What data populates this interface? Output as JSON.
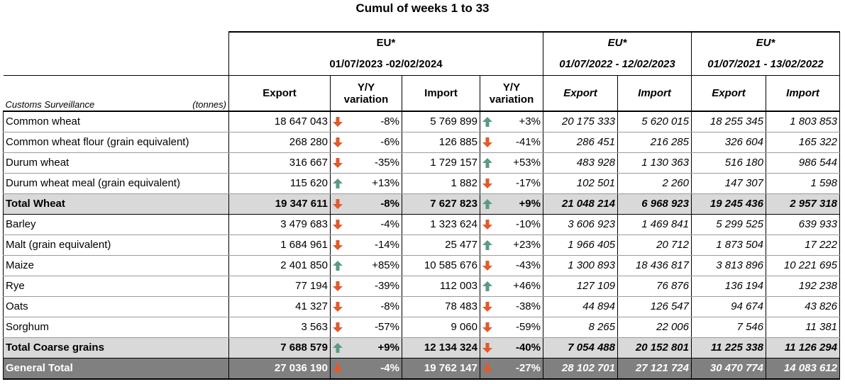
{
  "title": "Cumul of weeks 1 to 33",
  "header": {
    "groups": [
      {
        "region": "EU*",
        "period": "01/07/2023 -02/02/2024"
      },
      {
        "region": "EU*",
        "period": "01/07/2022 - 12/02/2023"
      },
      {
        "region": "EU*",
        "period": "01/07/2021 - 13/02/2022"
      }
    ],
    "customs_label": "Customs Surveillance",
    "unit_label": "(tonnes)",
    "export_label": "Export",
    "import_label": "Import",
    "variation_line1": "Y/Y",
    "variation_line2": "variation"
  },
  "colors": {
    "up": "#5b9a83",
    "down": "#e05a2b",
    "total_bg": "#d9d9d9",
    "grand_bg": "#808080"
  },
  "rows": [
    {
      "label": "Common wheat",
      "exp": "18 647 043",
      "exp_dir": "down",
      "exp_var": "-8%",
      "imp": "5 769 899",
      "imp_dir": "up",
      "imp_var": "+3%",
      "exp22": "20 175 333",
      "imp22": "5 620 015",
      "exp21": "18 255 345",
      "imp21": "1 803 853",
      "kind": "normal"
    },
    {
      "label": "Common wheat flour (grain equivalent)",
      "exp": "268 280",
      "exp_dir": "down",
      "exp_var": "-6%",
      "imp": "126 885",
      "imp_dir": "down",
      "imp_var": "-41%",
      "exp22": "286 451",
      "imp22": "216 285",
      "exp21": "326 604",
      "imp21": "165 322",
      "kind": "normal"
    },
    {
      "label": "Durum wheat",
      "exp": "316 667",
      "exp_dir": "down",
      "exp_var": "-35%",
      "imp": "1 729 157",
      "imp_dir": "up",
      "imp_var": "+53%",
      "exp22": "483 928",
      "imp22": "1 130 363",
      "exp21": "516 180",
      "imp21": "986 544",
      "kind": "normal"
    },
    {
      "label": "Durum wheat meal (grain equivalent)",
      "exp": "115 620",
      "exp_dir": "up",
      "exp_var": "+13%",
      "imp": "1 882",
      "imp_dir": "down",
      "imp_var": "-17%",
      "exp22": "102 501",
      "imp22": "2 260",
      "exp21": "147 307",
      "imp21": "1 598",
      "kind": "normal"
    },
    {
      "label": "Total Wheat",
      "exp": "19 347 611",
      "exp_dir": "down",
      "exp_var": "-8%",
      "imp": "7 627 823",
      "imp_dir": "up",
      "imp_var": "+9%",
      "exp22": "21 048 214",
      "imp22": "6 968 923",
      "exp21": "19 245 436",
      "imp21": "2 957 318",
      "kind": "total"
    },
    {
      "label": "Barley",
      "exp": "3 479 683",
      "exp_dir": "down",
      "exp_var": "-4%",
      "imp": "1 323 624",
      "imp_dir": "down",
      "imp_var": "-10%",
      "exp22": "3 606 923",
      "imp22": "1 469 841",
      "exp21": "5 299 525",
      "imp21": "639 933",
      "kind": "normal"
    },
    {
      "label": "Malt (grain equivalent)",
      "exp": "1 684 961",
      "exp_dir": "down",
      "exp_var": "-14%",
      "imp": "25 477",
      "imp_dir": "up",
      "imp_var": "+23%",
      "exp22": "1 966 405",
      "imp22": "20 712",
      "exp21": "1 873 504",
      "imp21": "17 222",
      "kind": "normal"
    },
    {
      "label": "Maize",
      "exp": "2 401 850",
      "exp_dir": "up",
      "exp_var": "+85%",
      "imp": "10 585 676",
      "imp_dir": "down",
      "imp_var": "-43%",
      "exp22": "1 300 893",
      "imp22": "18 436 817",
      "exp21": "3 813 896",
      "imp21": "10 221 695",
      "kind": "normal"
    },
    {
      "label": "Rye",
      "exp": "77 194",
      "exp_dir": "down",
      "exp_var": "-39%",
      "imp": "112 003",
      "imp_dir": "up",
      "imp_var": "+46%",
      "exp22": "127 109",
      "imp22": "76 876",
      "exp21": "136 194",
      "imp21": "192 238",
      "kind": "normal"
    },
    {
      "label": "Oats",
      "exp": "41 327",
      "exp_dir": "down",
      "exp_var": "-8%",
      "imp": "78 483",
      "imp_dir": "down",
      "imp_var": "-38%",
      "exp22": "44 894",
      "imp22": "126 547",
      "exp21": "94 674",
      "imp21": "43 826",
      "kind": "normal"
    },
    {
      "label": "Sorghum",
      "exp": "3 563",
      "exp_dir": "down",
      "exp_var": "-57%",
      "imp": "9 060",
      "imp_dir": "down",
      "imp_var": "-59%",
      "exp22": "8 265",
      "imp22": "22 006",
      "exp21": "7 546",
      "imp21": "11 381",
      "kind": "normal"
    },
    {
      "label": "Total Coarse grains",
      "exp": "7 688 579",
      "exp_dir": "up",
      "exp_var": "+9%",
      "imp": "12 134 324",
      "imp_dir": "down",
      "imp_var": "-40%",
      "exp22": "7 054 488",
      "imp22": "20 152 801",
      "exp21": "11 225 338",
      "imp21": "11 126 294",
      "kind": "total"
    },
    {
      "label": "General Total",
      "exp": "27 036 190",
      "exp_dir": "down",
      "exp_var": "-4%",
      "imp": "19 762 147",
      "imp_dir": "down",
      "imp_var": "-27%",
      "exp22": "28 102 701",
      "imp22": "27 121 724",
      "exp21": "30 470 774",
      "imp21": "14 083 612",
      "kind": "grand"
    }
  ]
}
